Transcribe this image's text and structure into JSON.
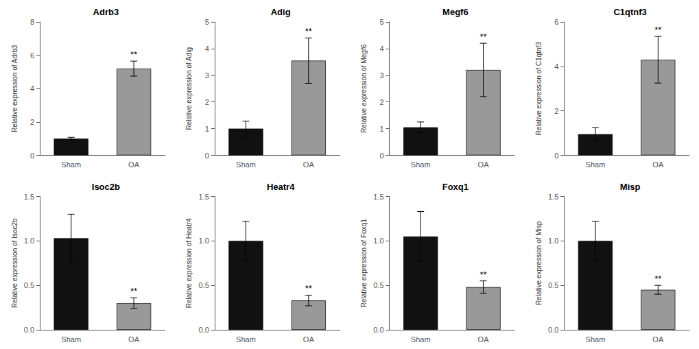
{
  "chart_data": [
    {
      "type": "bar",
      "title": "Adrb3",
      "ylabel": "Relative expression of Adrb3",
      "categories": [
        "Sham",
        "OA"
      ],
      "values": [
        1.0,
        5.2
      ],
      "errors": [
        0.08,
        0.45
      ],
      "colors": [
        "#111111",
        "#999999"
      ],
      "ylim": [
        0,
        8
      ],
      "yticks": [
        0,
        2,
        4,
        6,
        8
      ],
      "grid": false,
      "annotations": [
        {
          "category": "OA",
          "text": "**"
        }
      ]
    },
    {
      "type": "bar",
      "title": "Adig",
      "ylabel": "Relative expression of Adig",
      "categories": [
        "Sham",
        "OA"
      ],
      "values": [
        1.0,
        3.55
      ],
      "errors": [
        0.28,
        0.85
      ],
      "colors": [
        "#111111",
        "#999999"
      ],
      "ylim": [
        0,
        5
      ],
      "yticks": [
        0,
        1,
        2,
        3,
        4,
        5
      ],
      "grid": false,
      "annotations": [
        {
          "category": "OA",
          "text": "**"
        }
      ]
    },
    {
      "type": "bar",
      "title": "Megf6",
      "ylabel": "Relative expression of Megf6",
      "categories": [
        "Sham",
        "OA"
      ],
      "values": [
        1.05,
        3.2
      ],
      "errors": [
        0.2,
        1.0
      ],
      "colors": [
        "#111111",
        "#999999"
      ],
      "ylim": [
        0,
        5
      ],
      "yticks": [
        0,
        1,
        2,
        3,
        4,
        5
      ],
      "grid": false,
      "annotations": [
        {
          "category": "OA",
          "text": "**"
        }
      ]
    },
    {
      "type": "bar",
      "title": "C1qtnf3",
      "ylabel": "Relative expression of C1qtnf3",
      "categories": [
        "Sham",
        "OA"
      ],
      "values": [
        0.95,
        4.3
      ],
      "errors": [
        0.3,
        1.05
      ],
      "colors": [
        "#111111",
        "#999999"
      ],
      "ylim": [
        0,
        6
      ],
      "yticks": [
        0,
        2,
        4,
        6
      ],
      "grid": false,
      "annotations": [
        {
          "category": "OA",
          "text": "**"
        }
      ]
    },
    {
      "type": "bar",
      "title": "Isoc2b",
      "ylabel": "Relative expression of Isoc2b",
      "categories": [
        "Sham",
        "OA"
      ],
      "values": [
        1.03,
        0.3
      ],
      "errors": [
        0.27,
        0.06
      ],
      "colors": [
        "#111111",
        "#999999"
      ],
      "ylim": [
        0,
        1.5
      ],
      "yticks": [
        {
          "value": 0,
          "label": "0.0"
        },
        0.5,
        {
          "value": 1,
          "label": "1.0"
        },
        1.5
      ],
      "grid": false,
      "annotations": [
        {
          "category": "OA",
          "text": "**"
        }
      ]
    },
    {
      "type": "bar",
      "title": "Heatr4",
      "ylabel": "Relative expression of Heatr4",
      "categories": [
        "Sham",
        "OA"
      ],
      "values": [
        1.0,
        0.33
      ],
      "errors": [
        0.22,
        0.06
      ],
      "colors": [
        "#111111",
        "#999999"
      ],
      "ylim": [
        0,
        1.5
      ],
      "yticks": [
        {
          "value": 0,
          "label": "0.0"
        },
        0.5,
        {
          "value": 1,
          "label": "1.0"
        },
        1.5
      ],
      "grid": false,
      "annotations": [
        {
          "category": "OA",
          "text": "**"
        }
      ]
    },
    {
      "type": "bar",
      "title": "Foxq1",
      "ylabel": "Relative expression of Foxq1",
      "categories": [
        "Sham",
        "OA"
      ],
      "values": [
        1.05,
        0.48
      ],
      "errors": [
        0.28,
        0.07
      ],
      "colors": [
        "#111111",
        "#999999"
      ],
      "ylim": [
        0,
        1.5
      ],
      "yticks": [
        {
          "value": 0,
          "label": "0.0"
        },
        0.5,
        {
          "value": 1,
          "label": "1.0"
        },
        1.5
      ],
      "grid": false,
      "annotations": [
        {
          "category": "OA",
          "text": "**"
        }
      ]
    },
    {
      "type": "bar",
      "title": "Misp",
      "ylabel": "Relative expression of Misp",
      "categories": [
        "Sham",
        "OA"
      ],
      "values": [
        1.0,
        0.45
      ],
      "errors": [
        0.22,
        0.05
      ],
      "colors": [
        "#111111",
        "#999999"
      ],
      "ylim": [
        0,
        1.5
      ],
      "yticks": [
        {
          "value": 0,
          "label": "0.0"
        },
        0.5,
        {
          "value": 1,
          "label": "1.0"
        },
        1.5
      ],
      "grid": false,
      "annotations": [
        {
          "category": "OA",
          "text": "**"
        }
      ]
    }
  ]
}
